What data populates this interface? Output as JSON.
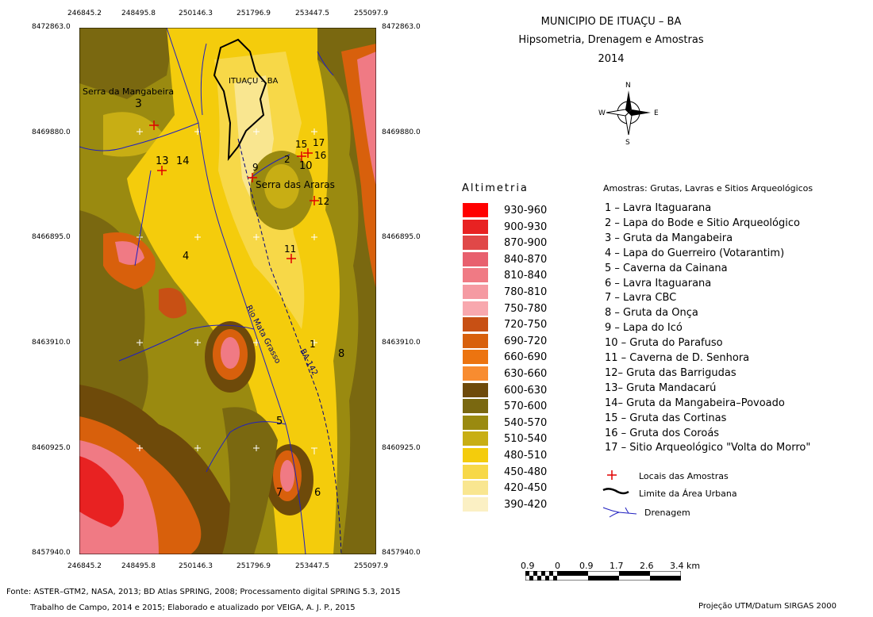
{
  "title": {
    "line1": "MUNICIPIO DE ITUAÇU – BA",
    "line2": "Hipsometria, Drenagem e Amostras",
    "line3": "2014"
  },
  "map": {
    "x_ticks": [
      "246845.2",
      "248495.8",
      "250146.3",
      "251796.9",
      "253447.5",
      "255097.9"
    ],
    "y_ticks": [
      "8472863.0",
      "8469880.0",
      "8466895.0",
      "8463910.0",
      "8460925.0",
      "8457940.0"
    ],
    "labels": {
      "urban": "ITUAÇU – BA",
      "serra_mangabeira": "Serra da Mangabeira",
      "serra_araras": "Serra das Araras",
      "river": "Rio Mata Grasso",
      "road": "BA-142"
    },
    "sample_numbers": [
      "1",
      "2",
      "3",
      "4",
      "5",
      "6",
      "7",
      "8",
      "9",
      "10",
      "11",
      "12",
      "13",
      "14",
      "15",
      "16",
      "17"
    ]
  },
  "compass": {
    "n": "N",
    "s": "S",
    "e": "E",
    "w": "W"
  },
  "altimetry": {
    "title": "Altimetria",
    "classes": [
      {
        "label": "930-960",
        "color": "#ff0000"
      },
      {
        "label": "900-930",
        "color": "#e82222"
      },
      {
        "label": "870-900",
        "color": "#e04848"
      },
      {
        "label": "840-870",
        "color": "#e8606e"
      },
      {
        "label": "810-840",
        "color": "#f07a84"
      },
      {
        "label": "780-810",
        "color": "#f59aa2"
      },
      {
        "label": "750-780",
        "color": "#f8a8ae"
      },
      {
        "label": "720-750",
        "color": "#c85014"
      },
      {
        "label": "690-720",
        "color": "#d8600c"
      },
      {
        "label": "660-690",
        "color": "#ec7410"
      },
      {
        "label": "630-660",
        "color": "#f88c30"
      },
      {
        "label": "600-630",
        "color": "#6e4a0a"
      },
      {
        "label": "570-600",
        "color": "#7a6810"
      },
      {
        "label": "540-570",
        "color": "#9a8a10"
      },
      {
        "label": "510-540",
        "color": "#c8ae14"
      },
      {
        "label": "480-510",
        "color": "#f4cc0c"
      },
      {
        "label": "450-480",
        "color": "#f7d848"
      },
      {
        "label": "420-450",
        "color": "#f9e690"
      },
      {
        "label": "390-420",
        "color": "#fbf0c4"
      }
    ]
  },
  "samples": {
    "title": "Amostras: Grutas, Lavras e Sitios Arqueológicos",
    "items": [
      "1 – Lavra Itaguarana",
      "2 – Lapa do Bode e Sitio Arqueológico",
      "3 – Gruta da Mangabeira",
      "4 – Lapa do Guerreiro (Votarantim)",
      "5 – Caverna da Cainana",
      "6 – Lavra Itaguarana",
      "7 – Lavra CBC",
      "8 – Gruta da Onça",
      "9 – Lapa do Icó",
      "10 – Gruta do Parafuso",
      "11 – Caverna de D. Senhora",
      "12– Gruta das Barrigudas",
      "13– Gruta Mandacarú",
      "14– Gruta da Mangabeira–Povoado",
      "15 – Gruta das Cortinas",
      "16 – Gruta dos Coroás",
      "17 – Sitio Arqueológico \"Volta do Morro\""
    ],
    "symbols": {
      "points": "Locais das Amostras",
      "urban": "Limite da Área Urbana",
      "drainage": "Drenagem"
    }
  },
  "scale": {
    "ticks": [
      "0.9",
      "0",
      "0.9",
      "1.7",
      "2.6",
      "3.4 km"
    ]
  },
  "footer": {
    "source": "Fonte: ASTER–GTM2, NASA, 2013; BD Atlas SPRING, 2008; Processamento digital SPRING 5.3, 2015",
    "fieldwork": "Trabalho de Campo, 2014 e 2015; Elaborado e atualizado por VEIGA, A. J. P., 2015",
    "projection": "Projeção UTM/Datum SIRGAS 2000"
  }
}
